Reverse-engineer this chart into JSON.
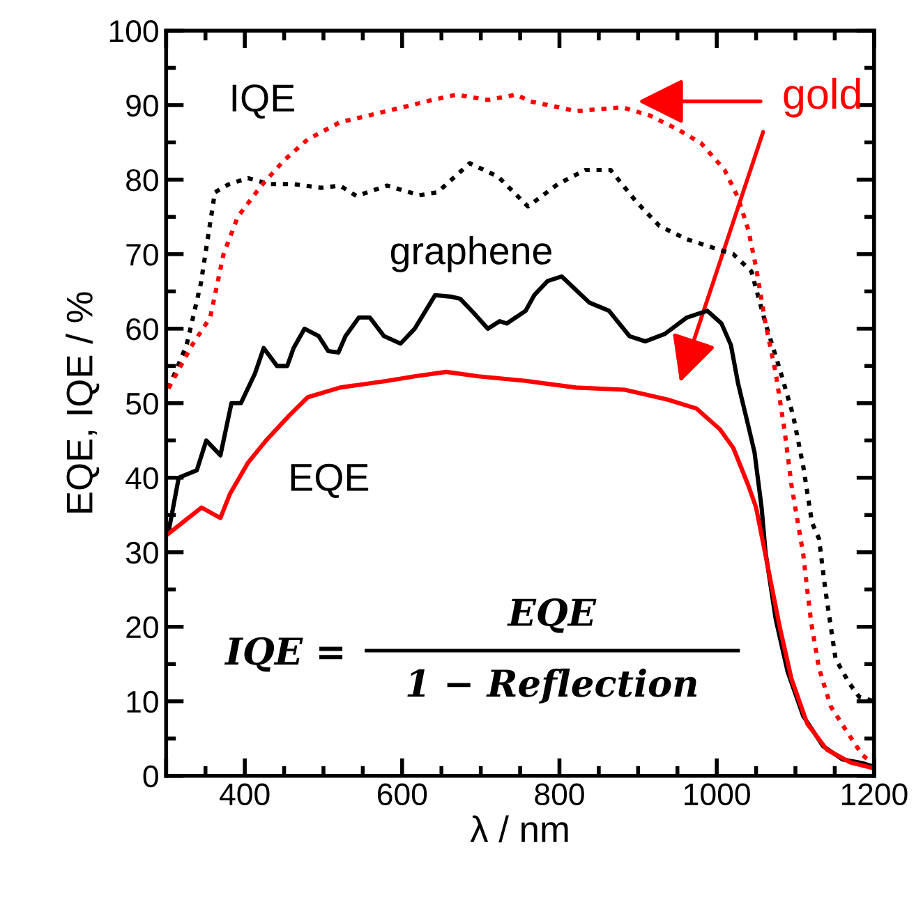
{
  "chart_data": {
    "type": "line",
    "xlabel": "λ / nm",
    "ylabel": "EQE, IQE / %",
    "xlim": [
      300,
      1200
    ],
    "xticks": [
      {
        "value": 300,
        "label": null
      },
      400,
      600,
      800,
      1000,
      1200
    ],
    "ylim": [
      0,
      100
    ],
    "yticks": [
      0,
      10,
      20,
      30,
      40,
      50,
      60,
      70,
      80,
      90,
      100
    ],
    "grid": false,
    "legend": false,
    "marker": "none",
    "series": [
      {
        "color": "#000000",
        "line_style": "dotted",
        "x": [
          303,
          326,
          344,
          362,
          380,
          404,
          432,
          462,
          497,
          521,
          542,
          581,
          622,
          645,
          686,
          722,
          760,
          798,
          833,
          865,
          898,
          927,
          962,
          997,
          1021,
          1044,
          1062,
          1080,
          1097,
          1110,
          1121,
          1130,
          1138,
          1151,
          1168,
          1181,
          1200
        ],
        "values": [
          52,
          57.8,
          66,
          78.3,
          79.4,
          80.2,
          79.4,
          79.4,
          78.9,
          79.2,
          77.8,
          79.2,
          77.9,
          78.3,
          82.2,
          80.4,
          76.4,
          79.4,
          81.3,
          81.3,
          77,
          73.8,
          72,
          70.8,
          70,
          67.7,
          60.7,
          54.6,
          48.4,
          41.5,
          34,
          31.8,
          25,
          15.7,
          12.5,
          10.6,
          10
        ]
      },
      {
        "color": "#ff0000",
        "line_style": "dotted",
        "x": [
          303,
          333,
          356,
          373,
          391,
          421,
          450,
          480,
          521,
          581,
          639,
          669,
          709,
          745,
          763,
          821,
          880,
          915,
          951,
          980,
          1010,
          1027,
          1040,
          1050,
          1062,
          1075,
          1086,
          1095,
          1110,
          1115,
          1120,
          1130,
          1145,
          1165,
          1185,
          1200
        ],
        "values": [
          52,
          57.8,
          61.5,
          70,
          75,
          79.2,
          82.6,
          85.4,
          87.7,
          89.2,
          90.7,
          91.4,
          90.7,
          91.4,
          90.5,
          89.2,
          89.7,
          88.6,
          86.7,
          84.9,
          81.3,
          77.6,
          73.3,
          68.2,
          60.7,
          54,
          46.5,
          39,
          29.7,
          25,
          20.6,
          14.4,
          9.3,
          6,
          2.8,
          1.5
        ]
      },
      {
        "color": "#000000",
        "line_style": "solid",
        "x": [
          303,
          316,
          339,
          351,
          369,
          383,
          395,
          413,
          424,
          441,
          454,
          462,
          476,
          494,
          506,
          519,
          528,
          545,
          559,
          577,
          598,
          616,
          642,
          662,
          674,
          692,
          709,
          724,
          733,
          757,
          768,
          785,
          803,
          821,
          838,
          863,
          889,
          909,
          934,
          962,
          988,
          1006,
          1018,
          1027,
          1040,
          1048,
          1057,
          1062,
          1075,
          1090,
          1110,
          1135,
          1160,
          1185,
          1200
        ],
        "values": [
          32.7,
          40,
          41,
          45,
          43,
          50,
          50,
          54,
          57.4,
          55,
          55,
          57.4,
          60,
          59,
          57,
          56.8,
          59,
          61.5,
          61.5,
          59,
          58,
          60,
          64.5,
          64.3,
          64,
          62,
          60,
          61,
          60.7,
          62.4,
          64.5,
          66.4,
          67,
          65.2,
          63.5,
          62.4,
          59,
          58.3,
          59.3,
          61.5,
          62.4,
          60.7,
          57.8,
          52.7,
          47,
          43.4,
          36,
          30,
          21,
          14,
          8,
          4,
          2.2,
          1.7,
          1.2
        ]
      },
      {
        "color": "#ff0000",
        "line_style": "solid",
        "x": [
          303,
          321,
          345,
          369,
          381,
          404,
          427,
          457,
          480,
          521,
          581,
          616,
          656,
          697,
          757,
          821,
          883,
          937,
          974,
          1004,
          1021,
          1040,
          1050,
          1065,
          1080,
          1095,
          1115,
          1140,
          1170,
          1200
        ],
        "values": [
          32.5,
          34,
          36,
          34.6,
          37.8,
          42,
          45,
          48.4,
          50.8,
          52.1,
          53,
          53.6,
          54.2,
          53.6,
          53,
          52.1,
          51.8,
          50.5,
          49.3,
          46.5,
          44,
          39,
          36,
          28,
          20,
          13,
          7,
          3.5,
          1.8,
          1
        ]
      }
    ],
    "annotations": [
      "IQE",
      "graphene",
      "EQE",
      "gold",
      "IQE =",
      "EQE",
      "1 − Reflection"
    ]
  }
}
